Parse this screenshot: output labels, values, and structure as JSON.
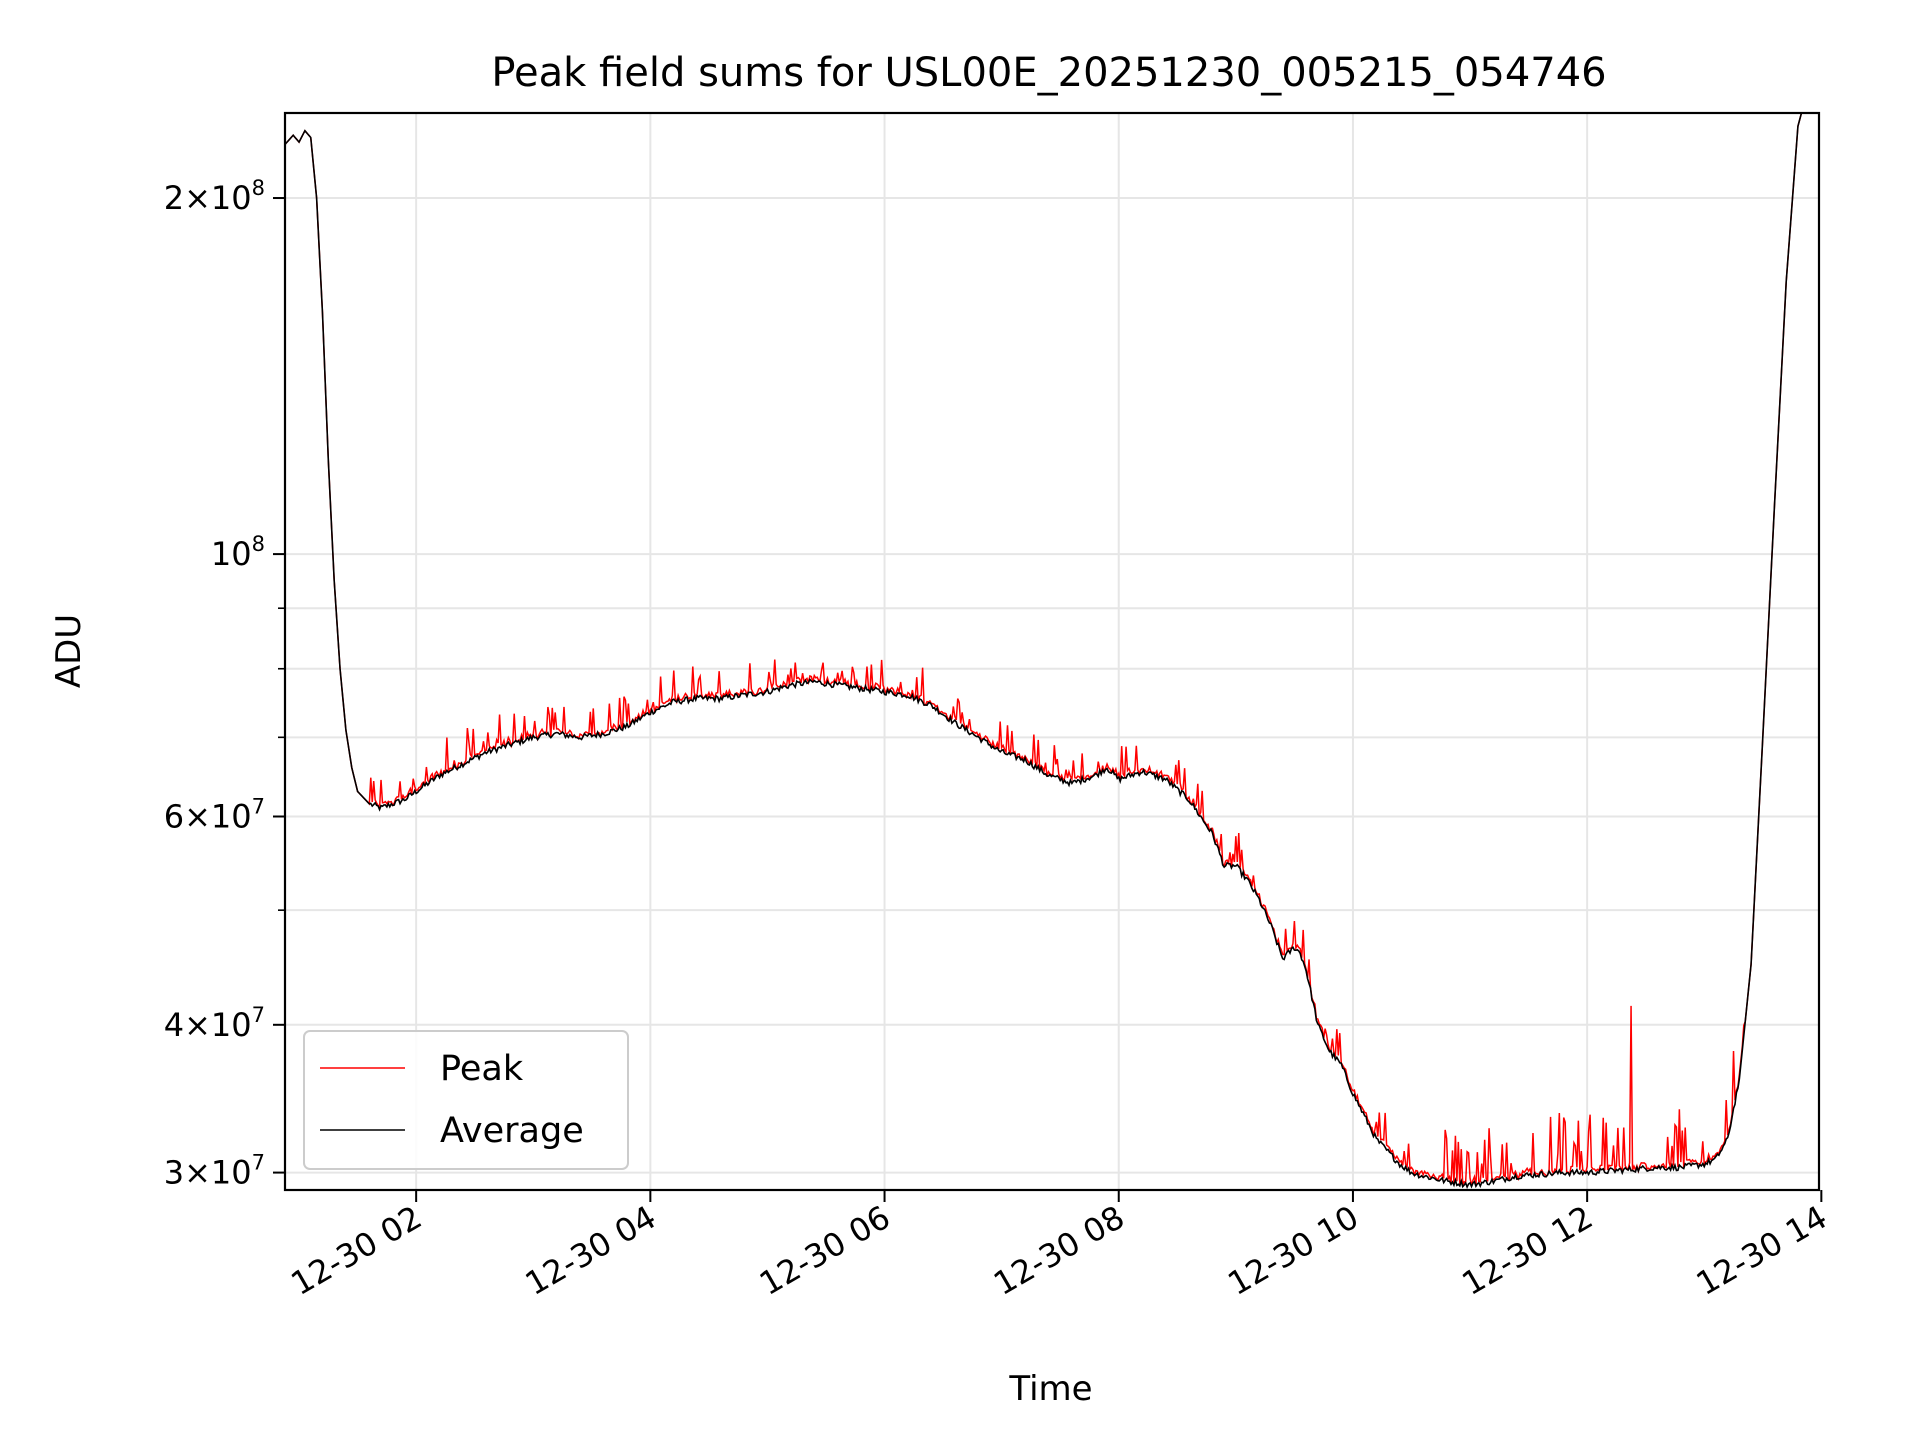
{
  "chart_data": {
    "type": "line",
    "title": "Peak field sums for USL00E_20251230_005215_054746",
    "xlabel": "Time",
    "ylabel": "ADU",
    "yscale": "log",
    "ylim": [
      29000000,
      236000000
    ],
    "xlim_hours": [
      0.88,
      13.98
    ],
    "grid": true,
    "legend_position": "lower-left",
    "x_ticks": [
      {
        "value": 2,
        "label": "12-30 02"
      },
      {
        "value": 4,
        "label": "12-30 04"
      },
      {
        "value": 6,
        "label": "12-30 06"
      },
      {
        "value": 8,
        "label": "12-30 08"
      },
      {
        "value": 10,
        "label": "12-30 10"
      },
      {
        "value": 12,
        "label": "12-30 12"
      },
      {
        "value": 14,
        "label": "12-30 14"
      }
    ],
    "y_major_ticks": [
      {
        "value": 30000000,
        "mantissa": "3",
        "exp": "7"
      },
      {
        "value": 40000000,
        "mantissa": "4",
        "exp": "7"
      },
      {
        "value": 60000000,
        "mantissa": "6",
        "exp": "7"
      },
      {
        "value": 100000000,
        "mantissa": "",
        "exp": "8"
      },
      {
        "value": 200000000,
        "mantissa": "2",
        "exp": "8"
      }
    ],
    "y_minor_grid": [
      50000000,
      70000000,
      80000000,
      90000000
    ],
    "series": [
      {
        "name": "Average",
        "color": "#000000",
        "x": [
          0.88,
          0.95,
          1.0,
          1.05,
          1.1,
          1.15,
          1.2,
          1.25,
          1.3,
          1.35,
          1.4,
          1.45,
          1.5,
          1.6,
          1.7,
          1.8,
          1.9,
          2.0,
          2.2,
          2.4,
          2.6,
          2.8,
          3.0,
          3.2,
          3.4,
          3.6,
          3.8,
          4.0,
          4.2,
          4.4,
          4.6,
          4.8,
          5.0,
          5.2,
          5.4,
          5.6,
          5.8,
          6.0,
          6.2,
          6.4,
          6.6,
          6.8,
          7.0,
          7.2,
          7.4,
          7.6,
          7.8,
          7.9,
          8.0,
          8.1,
          8.2,
          8.3,
          8.4,
          8.6,
          8.8,
          8.9,
          9.0,
          9.1,
          9.2,
          9.3,
          9.4,
          9.5,
          9.55,
          9.6,
          9.7,
          9.8,
          9.9,
          10.0,
          10.2,
          10.4,
          10.5,
          10.6,
          10.8,
          11.0,
          11.2,
          11.4,
          11.6,
          11.8,
          12.0,
          12.2,
          12.4,
          12.6,
          12.8,
          13.0,
          13.1,
          13.2,
          13.3,
          13.4,
          13.5,
          13.6,
          13.7,
          13.8,
          13.85,
          13.9,
          13.98
        ],
        "y": [
          222000000,
          226000000,
          223000000,
          228000000,
          225000000,
          200000000,
          160000000,
          120000000,
          95000000,
          80000000,
          71000000,
          66000000,
          63000000,
          61500000,
          61000000,
          61500000,
          62000000,
          63000000,
          65000000,
          66500000,
          68000000,
          69000000,
          70000000,
          70500000,
          70000000,
          70500000,
          71500000,
          73500000,
          75000000,
          75500000,
          75500000,
          76000000,
          76500000,
          77500000,
          78000000,
          77500000,
          77000000,
          76500000,
          76000000,
          74500000,
          72000000,
          70000000,
          68000000,
          67000000,
          65000000,
          64000000,
          65000000,
          66000000,
          64500000,
          65000000,
          65500000,
          65000000,
          64500000,
          62000000,
          58000000,
          54500000,
          54500000,
          53000000,
          51000000,
          48500000,
          45500000,
          46500000,
          46000000,
          44500000,
          40000000,
          38000000,
          37000000,
          35000000,
          32000000,
          30500000,
          30000000,
          29800000,
          29500000,
          29300000,
          29500000,
          29800000,
          29900000,
          30000000,
          30000000,
          30100000,
          30200000,
          30300000,
          30300000,
          30500000,
          30800000,
          32000000,
          36000000,
          45000000,
          70000000,
          110000000,
          170000000,
          230000000,
          240000000,
          240000000,
          240000000
        ]
      },
      {
        "name": "Peak",
        "color": "#ff0000"
      }
    ]
  }
}
